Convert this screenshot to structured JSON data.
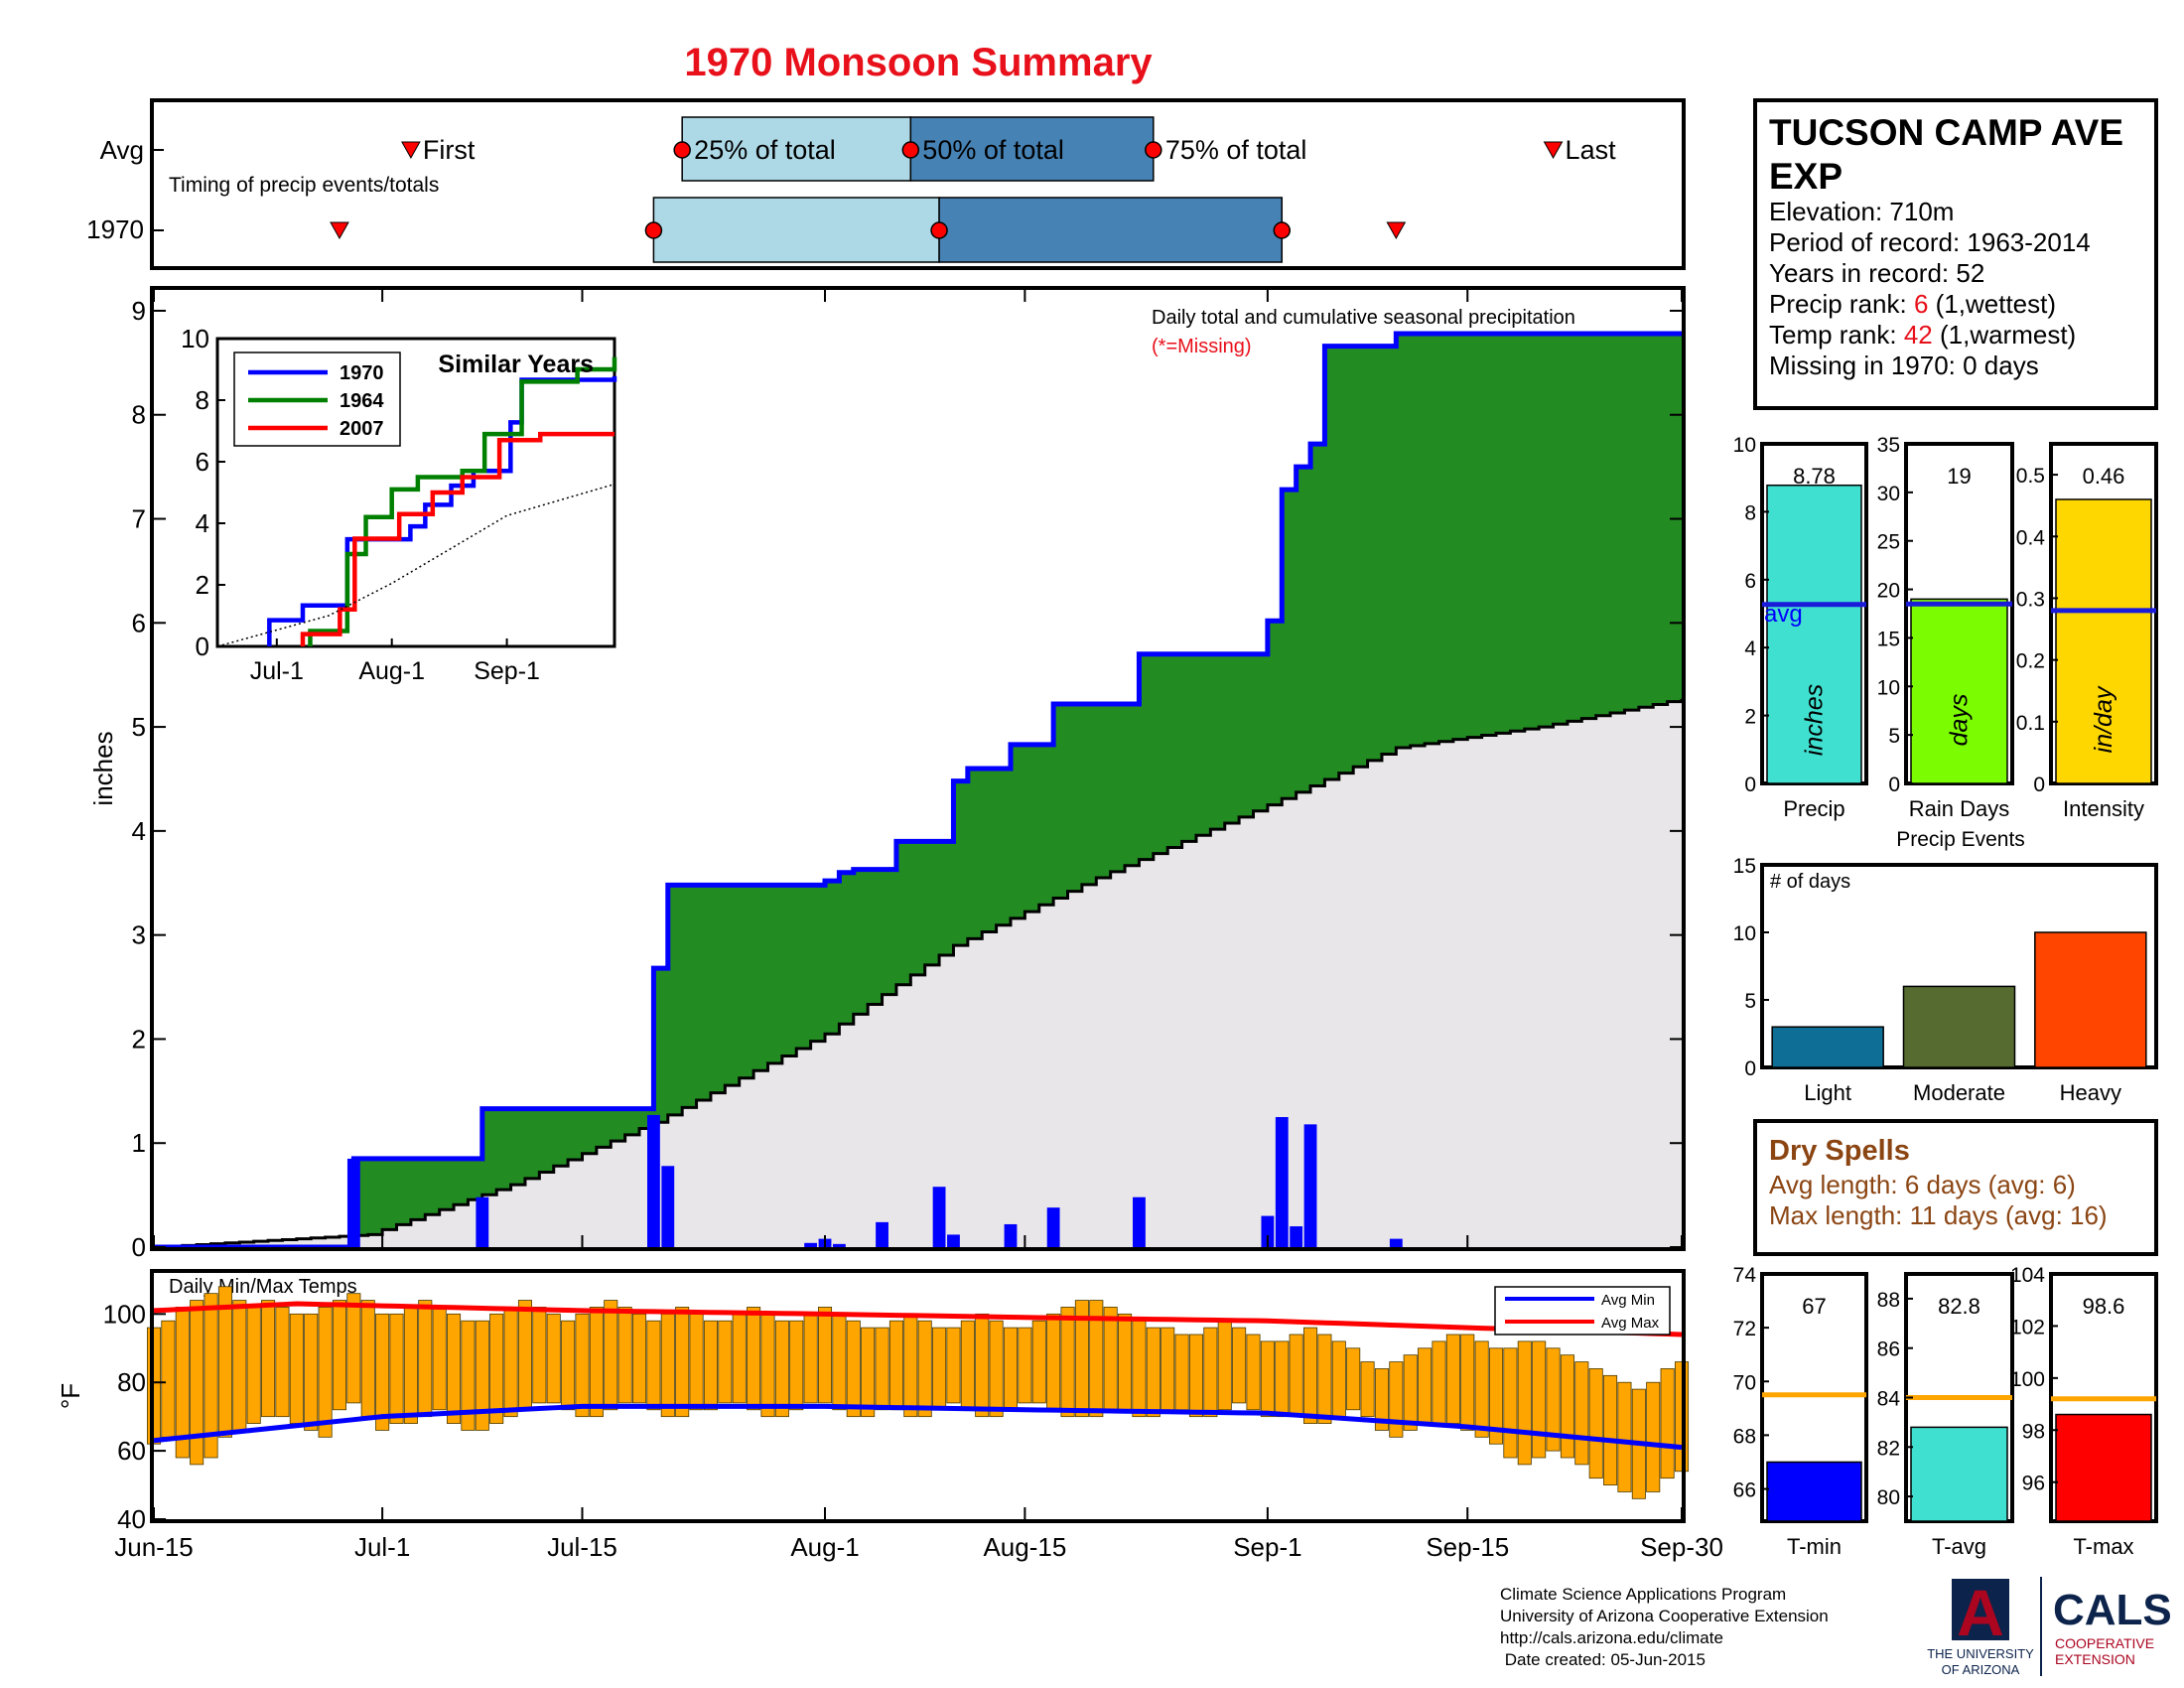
{
  "title": "1970 Monsoon Summary",
  "timing": {
    "row_labels": [
      "Avg",
      "1970"
    ],
    "caption": "Timing of precip events/totals",
    "first_label": "First",
    "last_label": "Last",
    "p25_label": "25% of total",
    "p50_label": "50% of total",
    "p75_label": "75% of total",
    "avg": {
      "first": "Jul-3",
      "p25": "Jul-22",
      "p50": "Aug-7",
      "p75": "Aug-24",
      "last": "Sep-21"
    },
    "year": {
      "first": "Jun-28",
      "p25": "Jul-20",
      "p50": "Aug-9",
      "p75": "Sep-2",
      "last": "Sep-10"
    },
    "colors": {
      "light": "#add8e6",
      "dark": "#4682b4",
      "marker": "#ff0000"
    }
  },
  "station": {
    "name_line1": "TUCSON CAMP AVE",
    "name_line2": "EXP",
    "elevation": "Elevation: 710m",
    "period": "Period of record: 1963-2014",
    "years": "Years in record: 52",
    "precip_rank_label": "Precip rank: ",
    "precip_rank": "6",
    "precip_rank_note": " (1,wettest)",
    "temp_rank_label": "Temp rank: ",
    "temp_rank": "42",
    "temp_rank_note": " (1,warmest)",
    "missing": "Missing in 1970: 0 days"
  },
  "chart_data": [
    {
      "type": "area",
      "name": "main_precip",
      "title": "Daily total and cumulative seasonal precipitation",
      "subtitle": "(*=Missing)",
      "ylabel": "inches",
      "ylim": [
        0,
        9.2
      ],
      "yticks": [
        0,
        1,
        2,
        3,
        4,
        5,
        6,
        7,
        8,
        9
      ],
      "xticks": [
        "Jun-15",
        "Jul-1",
        "Jul-15",
        "Aug-1",
        "Aug-15",
        "Sep-1",
        "Sep-15",
        "Sep-30"
      ],
      "x_range": [
        "Jun-15",
        "Sep-30"
      ],
      "cumulative_1970": [
        {
          "date": "Jun-29",
          "value": 0.85
        },
        {
          "date": "Jul-8",
          "value": 1.33
        },
        {
          "date": "Jul-20",
          "value": 2.68
        },
        {
          "date": "Jul-21",
          "value": 3.48
        },
        {
          "date": "Aug-1",
          "value": 3.52
        },
        {
          "date": "Aug-2",
          "value": 3.6
        },
        {
          "date": "Aug-3",
          "value": 3.63
        },
        {
          "date": "Aug-6",
          "value": 3.9
        },
        {
          "date": "Aug-10",
          "value": 4.48
        },
        {
          "date": "Aug-11",
          "value": 4.6
        },
        {
          "date": "Aug-14",
          "value": 4.83
        },
        {
          "date": "Aug-17",
          "value": 5.22
        },
        {
          "date": "Aug-23",
          "value": 5.7
        },
        {
          "date": "Sep-1",
          "value": 6.02
        },
        {
          "date": "Sep-2",
          "value": 7.28
        },
        {
          "date": "Sep-3",
          "value": 7.5
        },
        {
          "date": "Sep-4",
          "value": 7.72
        },
        {
          "date": "Sep-5",
          "value": 8.66
        },
        {
          "date": "Sep-10",
          "value": 8.78
        }
      ],
      "average_cumulative": [
        {
          "date": "Jun-15",
          "value": 0.0
        },
        {
          "date": "Jun-30",
          "value": 0.12
        },
        {
          "date": "Jul-10",
          "value": 0.6
        },
        {
          "date": "Jul-20",
          "value": 1.2
        },
        {
          "date": "Aug-1",
          "value": 2.05
        },
        {
          "date": "Aug-10",
          "value": 2.9
        },
        {
          "date": "Aug-20",
          "value": 3.55
        },
        {
          "date": "Sep-1",
          "value": 4.25
        },
        {
          "date": "Sep-10",
          "value": 4.8
        },
        {
          "date": "Sep-20",
          "value": 5.0
        },
        {
          "date": "Sep-30",
          "value": 5.27
        }
      ],
      "daily": [
        {
          "date": "Jun-29",
          "value": 0.85
        },
        {
          "date": "Jul-8",
          "value": 0.48
        },
        {
          "date": "Jul-20",
          "value": 1.27
        },
        {
          "date": "Jul-21",
          "value": 0.78
        },
        {
          "date": "Jul-31",
          "value": 0.04
        },
        {
          "date": "Aug-1",
          "value": 0.08
        },
        {
          "date": "Aug-2",
          "value": 0.03
        },
        {
          "date": "Aug-5",
          "value": 0.24
        },
        {
          "date": "Aug-9",
          "value": 0.58
        },
        {
          "date": "Aug-10",
          "value": 0.12
        },
        {
          "date": "Aug-14",
          "value": 0.22
        },
        {
          "date": "Aug-17",
          "value": 0.38
        },
        {
          "date": "Aug-23",
          "value": 0.48
        },
        {
          "date": "Sep-1",
          "value": 0.3
        },
        {
          "date": "Sep-2",
          "value": 1.25
        },
        {
          "date": "Sep-3",
          "value": 0.2
        },
        {
          "date": "Sep-4",
          "value": 1.18
        },
        {
          "date": "Sep-10",
          "value": 0.08
        }
      ],
      "colors": {
        "above_avg": "#228b22",
        "avg_fill": "#e8e6e8",
        "cumulative_line": "#0000ff",
        "avg_line": "#000000",
        "daily_bars": "#0000ff"
      }
    },
    {
      "type": "line",
      "name": "similar_years",
      "title": "Similar Years",
      "ylim": [
        0,
        10
      ],
      "yticks": [
        0,
        2,
        4,
        6,
        8,
        10
      ],
      "xticks": [
        "Jul-1",
        "Aug-1",
        "Sep-1"
      ],
      "x_range": [
        "Jun-15",
        "Sep-30"
      ],
      "series": [
        {
          "name": "1970",
          "color": "#0000ff",
          "points": [
            {
              "date": "Jun-29",
              "value": 0.85
            },
            {
              "date": "Jul-8",
              "value": 1.33
            },
            {
              "date": "Jul-20",
              "value": 3.48
            },
            {
              "date": "Aug-6",
              "value": 3.9
            },
            {
              "date": "Aug-10",
              "value": 4.6
            },
            {
              "date": "Aug-17",
              "value": 5.22
            },
            {
              "date": "Aug-23",
              "value": 5.7
            },
            {
              "date": "Sep-2",
              "value": 7.28
            },
            {
              "date": "Sep-5",
              "value": 8.66
            },
            {
              "date": "Sep-30",
              "value": 8.78
            }
          ]
        },
        {
          "name": "1964",
          "color": "#008000",
          "points": [
            {
              "date": "Jul-10",
              "value": 0.5
            },
            {
              "date": "Jul-20",
              "value": 3.0
            },
            {
              "date": "Jul-25",
              "value": 4.2
            },
            {
              "date": "Aug-1",
              "value": 5.1
            },
            {
              "date": "Aug-8",
              "value": 5.5
            },
            {
              "date": "Aug-20",
              "value": 5.7
            },
            {
              "date": "Aug-26",
              "value": 6.9
            },
            {
              "date": "Sep-5",
              "value": 8.6
            },
            {
              "date": "Sep-20",
              "value": 9.0
            },
            {
              "date": "Sep-30",
              "value": 9.4
            }
          ]
        },
        {
          "name": "2007",
          "color": "#ff0000",
          "points": [
            {
              "date": "Jul-8",
              "value": 0.4
            },
            {
              "date": "Jul-18",
              "value": 1.2
            },
            {
              "date": "Jul-22",
              "value": 3.5
            },
            {
              "date": "Aug-3",
              "value": 4.3
            },
            {
              "date": "Aug-12",
              "value": 5.0
            },
            {
              "date": "Aug-20",
              "value": 5.5
            },
            {
              "date": "Aug-30",
              "value": 6.7
            },
            {
              "date": "Sep-10",
              "value": 6.9
            },
            {
              "date": "Sep-30",
              "value": 6.9
            }
          ]
        },
        {
          "name": "",
          "color": "#000000",
          "dotted": true,
          "points": [
            {
              "date": "Jun-15",
              "value": 0.0
            },
            {
              "date": "Jul-15",
              "value": 1.0
            },
            {
              "date": "Aug-1",
              "value": 2.05
            },
            {
              "date": "Sep-1",
              "value": 4.25
            },
            {
              "date": "Sep-30",
              "value": 5.27
            }
          ]
        }
      ]
    },
    {
      "type": "bar",
      "name": "daily_temps",
      "title": "Daily Min/Max Temps",
      "ylabel": "°F",
      "ylim": [
        40,
        112
      ],
      "yticks": [
        40,
        60,
        80,
        100
      ],
      "legend": [
        "Avg Min",
        "Avg Max"
      ],
      "bar_color": "#ffa500",
      "avg_min": [
        {
          "date": "Jun-15",
          "value": 63
        },
        {
          "date": "Jul-1",
          "value": 70
        },
        {
          "date": "Jul-15",
          "value": 73
        },
        {
          "date": "Aug-1",
          "value": 73
        },
        {
          "date": "Aug-15",
          "value": 72
        },
        {
          "date": "Sep-1",
          "value": 71
        },
        {
          "date": "Sep-15",
          "value": 67
        },
        {
          "date": "Sep-30",
          "value": 61
        }
      ],
      "avg_max": [
        {
          "date": "Jun-15",
          "value": 101
        },
        {
          "date": "Jun-25",
          "value": 103
        },
        {
          "date": "Jul-15",
          "value": 101
        },
        {
          "date": "Aug-1",
          "value": 100
        },
        {
          "date": "Aug-15",
          "value": 99
        },
        {
          "date": "Sep-1",
          "value": 98
        },
        {
          "date": "Sep-15",
          "value": 96
        },
        {
          "date": "Sep-30",
          "value": 94
        }
      ],
      "daily_min": [
        62,
        64,
        58,
        56,
        58,
        64,
        66,
        68,
        70,
        70,
        68,
        66,
        64,
        72,
        74,
        70,
        66,
        68,
        68,
        70,
        72,
        68,
        66,
        66,
        68,
        70,
        72,
        74,
        74,
        72,
        70,
        70,
        72,
        74,
        74,
        72,
        70,
        70,
        72,
        72,
        74,
        74,
        72,
        70,
        70,
        72,
        74,
        74,
        72,
        70,
        70,
        72,
        72,
        70,
        70,
        72,
        74,
        72,
        70,
        70,
        72,
        74,
        74,
        72,
        70,
        70,
        70,
        72,
        72,
        70,
        70,
        72,
        72,
        70,
        70,
        72,
        74,
        72,
        70,
        70,
        70,
        68,
        68,
        70,
        72,
        70,
        66,
        64,
        66,
        68,
        68,
        68,
        66,
        64,
        62,
        58,
        56,
        58,
        60,
        58,
        56,
        52,
        50,
        48,
        46,
        48,
        52,
        54
      ],
      "daily_max": [
        96,
        98,
        102,
        104,
        106,
        108,
        104,
        102,
        104,
        102,
        100,
        100,
        102,
        104,
        106,
        104,
        100,
        100,
        102,
        104,
        102,
        100,
        98,
        98,
        100,
        102,
        104,
        102,
        100,
        98,
        100,
        102,
        104,
        102,
        100,
        98,
        100,
        102,
        100,
        98,
        98,
        100,
        102,
        100,
        98,
        98,
        100,
        102,
        100,
        98,
        96,
        96,
        98,
        100,
        98,
        96,
        96,
        98,
        100,
        98,
        96,
        96,
        98,
        100,
        102,
        104,
        104,
        102,
        100,
        98,
        96,
        96,
        94,
        94,
        96,
        98,
        96,
        94,
        92,
        92,
        94,
        96,
        94,
        92,
        90,
        86,
        84,
        86,
        88,
        90,
        92,
        94,
        94,
        92,
        90,
        90,
        92,
        92,
        90,
        88,
        86,
        84,
        82,
        80,
        78,
        80,
        84,
        86
      ]
    },
    {
      "type": "bar",
      "name": "precip_total",
      "xlabel": "Precip",
      "inner_label": "inches",
      "value": 8.78,
      "value_label": "8.78",
      "avg": 5.27,
      "avg_label": "avg",
      "ylim": [
        0,
        10
      ],
      "yticks": [
        0,
        2,
        4,
        6,
        8,
        10
      ],
      "color": "#40e0d0"
    },
    {
      "type": "bar",
      "name": "rain_days",
      "xlabel": "Rain Days",
      "inner_label": "days",
      "value": 19,
      "value_label": "19",
      "avg": 18.5,
      "ylim": [
        0,
        35
      ],
      "yticks": [
        0,
        5,
        10,
        15,
        20,
        25,
        30,
        35
      ],
      "color": "#7cfc00"
    },
    {
      "type": "bar",
      "name": "intensity",
      "xlabel": "Intensity",
      "inner_label": "in/day",
      "value": 0.46,
      "value_label": "0.46",
      "avg": 0.28,
      "ylim": [
        0,
        0.55
      ],
      "yticks": [
        0,
        0.1,
        0.2,
        0.3,
        0.4,
        0.5
      ],
      "color": "#ffd700"
    },
    {
      "type": "bar",
      "name": "precip_events",
      "title": "Precip Events",
      "ylabel_inside": "# of days",
      "categories": [
        "Light",
        "Moderate",
        "Heavy"
      ],
      "values": [
        3,
        6,
        10
      ],
      "colors": [
        "#0e6e96",
        "#556b2f",
        "#ff4500"
      ],
      "ylim": [
        0,
        15
      ],
      "yticks": [
        0,
        5,
        10,
        15
      ]
    },
    {
      "type": "bar",
      "name": "t_min",
      "xlabel": "T-min",
      "value": 67,
      "value_label": "67",
      "avg": 69.5,
      "ylim": [
        64.8,
        74
      ],
      "yticks": [
        66,
        68,
        70,
        72,
        74
      ],
      "color": "#0000ff"
    },
    {
      "type": "bar",
      "name": "t_avg",
      "xlabel": "T-avg",
      "value": 82.8,
      "value_label": "82.8",
      "avg": 84,
      "ylim": [
        79,
        89
      ],
      "yticks": [
        80,
        82,
        84,
        86,
        88
      ],
      "color": "#40e0d0"
    },
    {
      "type": "bar",
      "name": "t_max",
      "xlabel": "T-max",
      "value": 98.6,
      "value_label": "98.6",
      "avg": 99.2,
      "ylim": [
        94.5,
        104
      ],
      "yticks": [
        96,
        98,
        100,
        102,
        104
      ],
      "color": "#ff0000"
    }
  ],
  "dry_spells": {
    "title": "Dry Spells",
    "avg_length": "Avg length: 6 days (avg: 6)",
    "max_length": "Max length: 11 days (avg: 16)",
    "color": "#8b4513"
  },
  "footer": {
    "line1": "Climate Science Applications Program",
    "line2": "University of Arizona Cooperative Extension",
    "line3": "http://cals.arizona.edu/climate",
    "line4": " Date created: 05-Jun-2015"
  },
  "logos": {
    "ua_mark": "A",
    "ua_line1": "THE UNIVERSITY",
    "ua_line2": "OF ARIZONA",
    "cals": "CALS",
    "cals_line1": "COOPERATIVE",
    "cals_line2": "EXTENSION"
  }
}
